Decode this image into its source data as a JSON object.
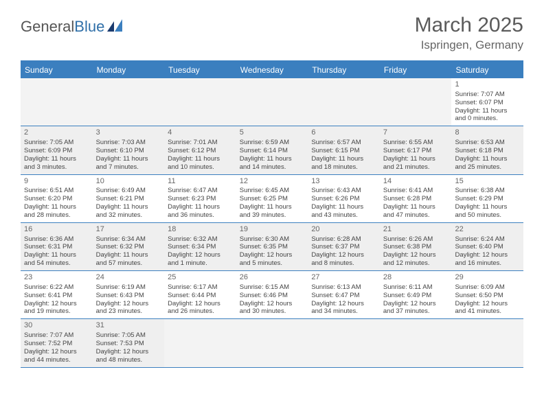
{
  "logo": {
    "text1": "General",
    "text2": "Blue"
  },
  "title": "March 2025",
  "location": "Ispringen, Germany",
  "colors": {
    "header_blue": "#3b7fbf",
    "row_alt": "#efefef",
    "empty": "#f3f3f3",
    "text": "#444444"
  },
  "day_headers": [
    "Sunday",
    "Monday",
    "Tuesday",
    "Wednesday",
    "Thursday",
    "Friday",
    "Saturday"
  ],
  "weeks": [
    [
      {
        "empty": true
      },
      {
        "empty": true
      },
      {
        "empty": true
      },
      {
        "empty": true
      },
      {
        "empty": true
      },
      {
        "empty": true
      },
      {
        "n": "1",
        "sr": "Sunrise: 7:07 AM",
        "ss": "Sunset: 6:07 PM",
        "d1": "Daylight: 11 hours",
        "d2": "and 0 minutes."
      }
    ],
    [
      {
        "n": "2",
        "sr": "Sunrise: 7:05 AM",
        "ss": "Sunset: 6:09 PM",
        "d1": "Daylight: 11 hours",
        "d2": "and 3 minutes."
      },
      {
        "n": "3",
        "sr": "Sunrise: 7:03 AM",
        "ss": "Sunset: 6:10 PM",
        "d1": "Daylight: 11 hours",
        "d2": "and 7 minutes."
      },
      {
        "n": "4",
        "sr": "Sunrise: 7:01 AM",
        "ss": "Sunset: 6:12 PM",
        "d1": "Daylight: 11 hours",
        "d2": "and 10 minutes."
      },
      {
        "n": "5",
        "sr": "Sunrise: 6:59 AM",
        "ss": "Sunset: 6:14 PM",
        "d1": "Daylight: 11 hours",
        "d2": "and 14 minutes."
      },
      {
        "n": "6",
        "sr": "Sunrise: 6:57 AM",
        "ss": "Sunset: 6:15 PM",
        "d1": "Daylight: 11 hours",
        "d2": "and 18 minutes."
      },
      {
        "n": "7",
        "sr": "Sunrise: 6:55 AM",
        "ss": "Sunset: 6:17 PM",
        "d1": "Daylight: 11 hours",
        "d2": "and 21 minutes."
      },
      {
        "n": "8",
        "sr": "Sunrise: 6:53 AM",
        "ss": "Sunset: 6:18 PM",
        "d1": "Daylight: 11 hours",
        "d2": "and 25 minutes."
      }
    ],
    [
      {
        "n": "9",
        "sr": "Sunrise: 6:51 AM",
        "ss": "Sunset: 6:20 PM",
        "d1": "Daylight: 11 hours",
        "d2": "and 28 minutes."
      },
      {
        "n": "10",
        "sr": "Sunrise: 6:49 AM",
        "ss": "Sunset: 6:21 PM",
        "d1": "Daylight: 11 hours",
        "d2": "and 32 minutes."
      },
      {
        "n": "11",
        "sr": "Sunrise: 6:47 AM",
        "ss": "Sunset: 6:23 PM",
        "d1": "Daylight: 11 hours",
        "d2": "and 36 minutes."
      },
      {
        "n": "12",
        "sr": "Sunrise: 6:45 AM",
        "ss": "Sunset: 6:25 PM",
        "d1": "Daylight: 11 hours",
        "d2": "and 39 minutes."
      },
      {
        "n": "13",
        "sr": "Sunrise: 6:43 AM",
        "ss": "Sunset: 6:26 PM",
        "d1": "Daylight: 11 hours",
        "d2": "and 43 minutes."
      },
      {
        "n": "14",
        "sr": "Sunrise: 6:41 AM",
        "ss": "Sunset: 6:28 PM",
        "d1": "Daylight: 11 hours",
        "d2": "and 47 minutes."
      },
      {
        "n": "15",
        "sr": "Sunrise: 6:38 AM",
        "ss": "Sunset: 6:29 PM",
        "d1": "Daylight: 11 hours",
        "d2": "and 50 minutes."
      }
    ],
    [
      {
        "n": "16",
        "sr": "Sunrise: 6:36 AM",
        "ss": "Sunset: 6:31 PM",
        "d1": "Daylight: 11 hours",
        "d2": "and 54 minutes."
      },
      {
        "n": "17",
        "sr": "Sunrise: 6:34 AM",
        "ss": "Sunset: 6:32 PM",
        "d1": "Daylight: 11 hours",
        "d2": "and 57 minutes."
      },
      {
        "n": "18",
        "sr": "Sunrise: 6:32 AM",
        "ss": "Sunset: 6:34 PM",
        "d1": "Daylight: 12 hours",
        "d2": "and 1 minute."
      },
      {
        "n": "19",
        "sr": "Sunrise: 6:30 AM",
        "ss": "Sunset: 6:35 PM",
        "d1": "Daylight: 12 hours",
        "d2": "and 5 minutes."
      },
      {
        "n": "20",
        "sr": "Sunrise: 6:28 AM",
        "ss": "Sunset: 6:37 PM",
        "d1": "Daylight: 12 hours",
        "d2": "and 8 minutes."
      },
      {
        "n": "21",
        "sr": "Sunrise: 6:26 AM",
        "ss": "Sunset: 6:38 PM",
        "d1": "Daylight: 12 hours",
        "d2": "and 12 minutes."
      },
      {
        "n": "22",
        "sr": "Sunrise: 6:24 AM",
        "ss": "Sunset: 6:40 PM",
        "d1": "Daylight: 12 hours",
        "d2": "and 16 minutes."
      }
    ],
    [
      {
        "n": "23",
        "sr": "Sunrise: 6:22 AM",
        "ss": "Sunset: 6:41 PM",
        "d1": "Daylight: 12 hours",
        "d2": "and 19 minutes."
      },
      {
        "n": "24",
        "sr": "Sunrise: 6:19 AM",
        "ss": "Sunset: 6:43 PM",
        "d1": "Daylight: 12 hours",
        "d2": "and 23 minutes."
      },
      {
        "n": "25",
        "sr": "Sunrise: 6:17 AM",
        "ss": "Sunset: 6:44 PM",
        "d1": "Daylight: 12 hours",
        "d2": "and 26 minutes."
      },
      {
        "n": "26",
        "sr": "Sunrise: 6:15 AM",
        "ss": "Sunset: 6:46 PM",
        "d1": "Daylight: 12 hours",
        "d2": "and 30 minutes."
      },
      {
        "n": "27",
        "sr": "Sunrise: 6:13 AM",
        "ss": "Sunset: 6:47 PM",
        "d1": "Daylight: 12 hours",
        "d2": "and 34 minutes."
      },
      {
        "n": "28",
        "sr": "Sunrise: 6:11 AM",
        "ss": "Sunset: 6:49 PM",
        "d1": "Daylight: 12 hours",
        "d2": "and 37 minutes."
      },
      {
        "n": "29",
        "sr": "Sunrise: 6:09 AM",
        "ss": "Sunset: 6:50 PM",
        "d1": "Daylight: 12 hours",
        "d2": "and 41 minutes."
      }
    ],
    [
      {
        "n": "30",
        "sr": "Sunrise: 7:07 AM",
        "ss": "Sunset: 7:52 PM",
        "d1": "Daylight: 12 hours",
        "d2": "and 44 minutes."
      },
      {
        "n": "31",
        "sr": "Sunrise: 7:05 AM",
        "ss": "Sunset: 7:53 PM",
        "d1": "Daylight: 12 hours",
        "d2": "and 48 minutes."
      },
      {
        "empty": true
      },
      {
        "empty": true
      },
      {
        "empty": true
      },
      {
        "empty": true
      },
      {
        "empty": true
      }
    ]
  ]
}
